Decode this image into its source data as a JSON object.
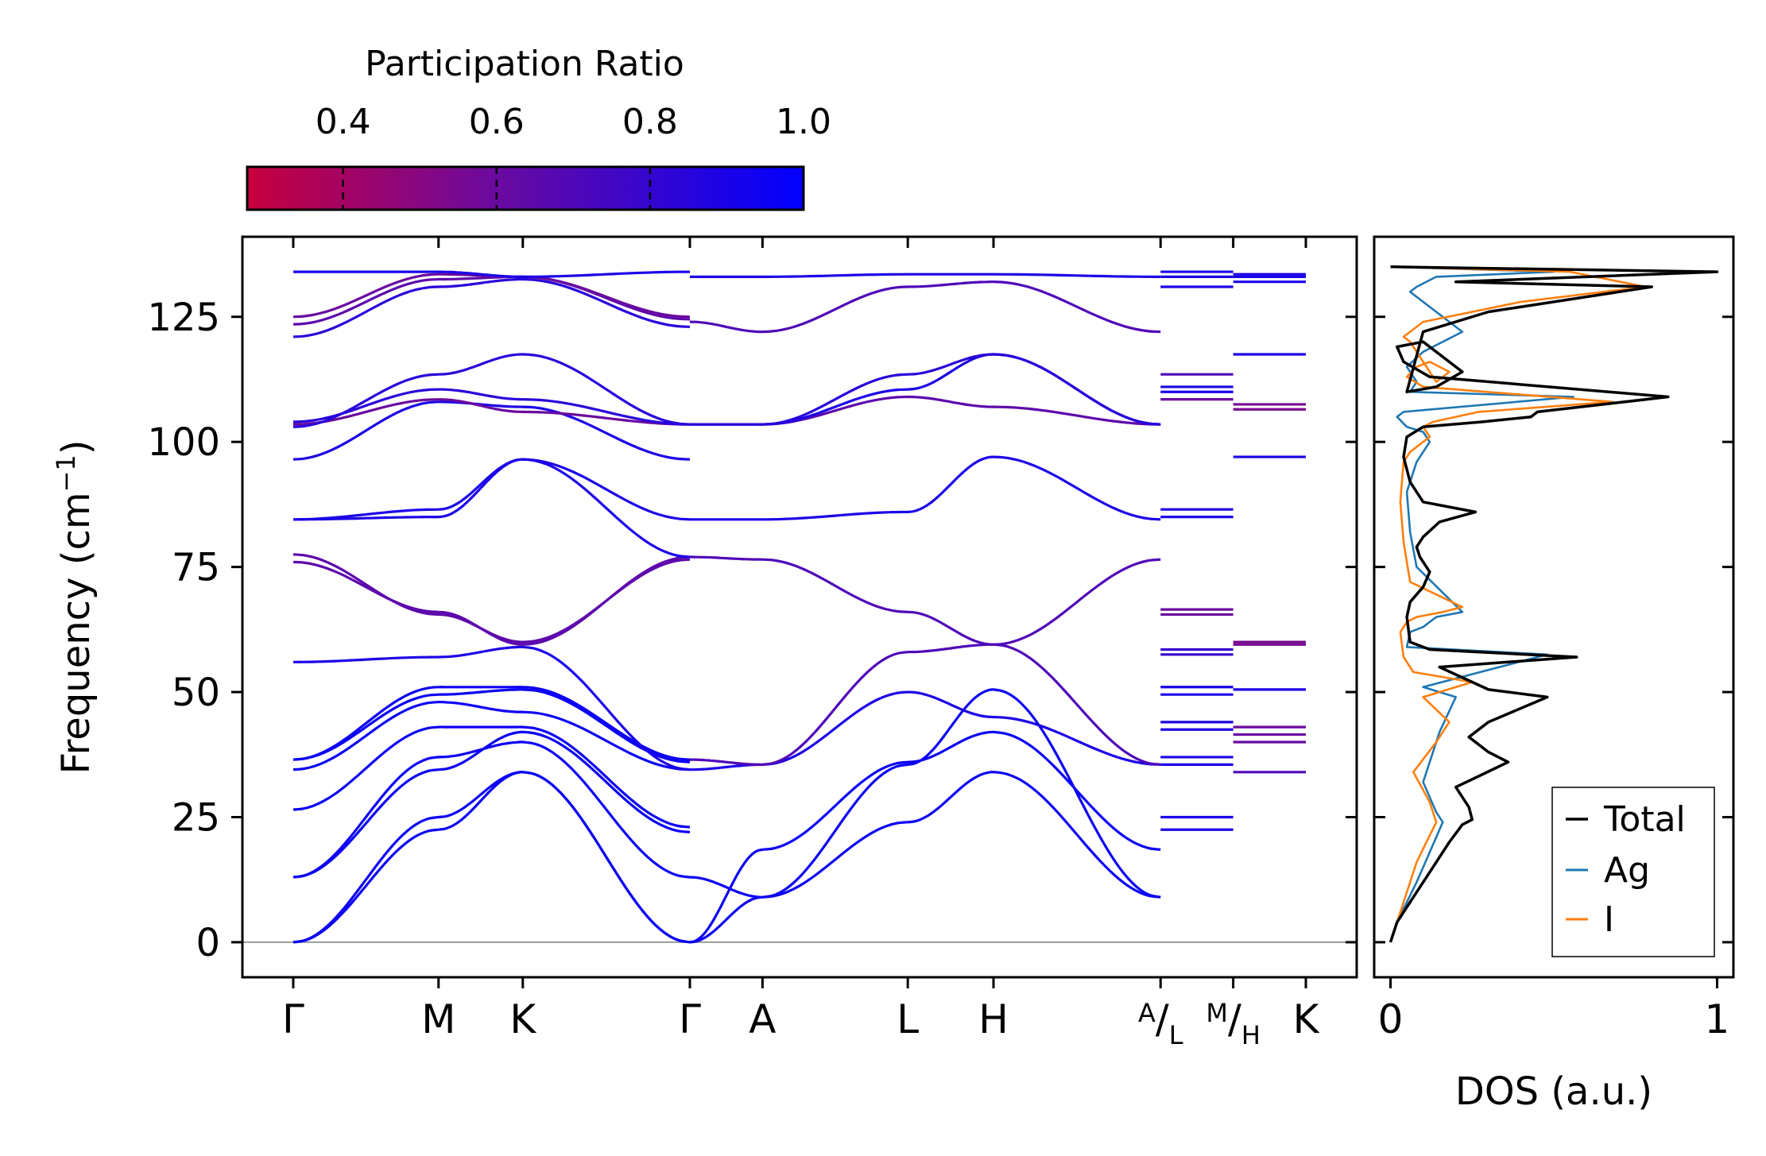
{
  "colors": {
    "cbar_low": "#c8003c",
    "cbar_mid": "#6a0aa0",
    "cbar_high": "#0000ff",
    "band_blue": "#2a10ec",
    "band_purple": "#6a1aa8",
    "total": "#000000",
    "ag": "#1f77b4",
    "i": "#ff7f0e",
    "zero_line": "#999999"
  },
  "chart_data": [
    {
      "type": "line",
      "name": "phonon-dispersion",
      "ylabel": "Frequency (cm",
      "ylabel_sup": "−1",
      "ylabel_close": ")",
      "ylim": [
        -7,
        141
      ],
      "yticks": [
        0,
        25,
        50,
        75,
        100,
        125
      ],
      "ytick_labels": [
        "0",
        "25",
        "50",
        "75",
        "100",
        "125"
      ],
      "path": {
        "segments": [
          {
            "points": [
              "Γ",
              "M",
              "K",
              "Γ",
              "A",
              "L",
              "H",
              "A"
            ],
            "positions": [
              0,
              1.0,
              1.58,
              2.73,
              3.23,
              4.23,
              4.82,
              5.97
            ]
          },
          {
            "points": [
              "L",
              "M"
            ],
            "positions": [
              5.97,
              6.47
            ]
          },
          {
            "points": [
              "H",
              "K"
            ],
            "positions": [
              6.47,
              6.97
            ]
          }
        ],
        "xlim": [
          -0.35,
          7.32
        ]
      },
      "xtick_positions": [
        0,
        1.0,
        1.58,
        2.73,
        3.23,
        4.23,
        4.82,
        5.97,
        6.47,
        6.97
      ],
      "xtick_labels": [
        {
          "main": "Γ"
        },
        {
          "main": "M"
        },
        {
          "main": "K"
        },
        {
          "main": "Γ"
        },
        {
          "main": "A"
        },
        {
          "main": "L"
        },
        {
          "main": "H"
        },
        {
          "sup": "A",
          "sep": "/",
          "sub": "L"
        },
        {
          "sup": "M",
          "sep": "/",
          "sub": "H"
        },
        {
          "main": "K"
        }
      ],
      "colorbar": {
        "title": "Participation Ratio",
        "range": [
          0.275,
          1.0
        ],
        "ticks": [
          0.4,
          0.6,
          0.8,
          1.0
        ],
        "tick_labels": [
          "0.4",
          "0.6",
          "0.8",
          "1.0"
        ]
      },
      "bands_gamma_M_K_gamma": [
        {
          "values": [
            0,
            25,
            34,
            0
          ],
          "pr": 0.95
        },
        {
          "values": [
            0,
            22.5,
            34,
            0
          ],
          "pr": 0.95
        },
        {
          "values": [
            13,
            37,
            40,
            13
          ],
          "pr": 0.95
        },
        {
          "values": [
            13,
            34.5,
            42,
            22
          ],
          "pr": 0.95
        },
        {
          "values": [
            26.5,
            43,
            43,
            23
          ],
          "pr": 0.95
        },
        {
          "values": [
            34.5,
            48,
            46,
            34.5
          ],
          "pr": 0.95
        },
        {
          "values": [
            36.5,
            51,
            51,
            36.5
          ],
          "pr": 0.95
        },
        {
          "values": [
            36.5,
            49.5,
            50.5,
            36
          ],
          "pr": 0.95
        },
        {
          "values": [
            56,
            57,
            59,
            34.5
          ],
          "pr": 0.9
        },
        {
          "values": [
            76,
            66,
            59.5,
            77
          ],
          "pr": 0.65
        },
        {
          "values": [
            77.5,
            65.5,
            60,
            76.5
          ],
          "pr": 0.65
        },
        {
          "values": [
            84.5,
            85,
            96.5,
            77
          ],
          "pr": 0.9
        },
        {
          "values": [
            84.5,
            86.5,
            96.5,
            84.5
          ],
          "pr": 0.9
        },
        {
          "values": [
            96.5,
            108,
            107,
            96.5
          ],
          "pr": 0.9
        },
        {
          "values": [
            103.5,
            108.5,
            106,
            103.5
          ],
          "pr": 0.6
        },
        {
          "values": [
            104,
            110.5,
            108.5,
            103.5
          ],
          "pr": 0.85
        },
        {
          "values": [
            103,
            113.5,
            117.5,
            103.5
          ],
          "pr": 0.85
        },
        {
          "values": [
            121,
            131,
            132.5,
            123
          ],
          "pr": 0.85
        },
        {
          "values": [
            123.5,
            132.5,
            133,
            124.5
          ],
          "pr": 0.65
        },
        {
          "values": [
            125,
            133.5,
            133,
            125
          ],
          "pr": 0.6
        },
        {
          "values": [
            134,
            134,
            133,
            134
          ],
          "pr": 0.9
        }
      ],
      "bands_gamma_A_L_H_A": [
        {
          "values": [
            0,
            9,
            24,
            34,
            9
          ],
          "pr": 0.95
        },
        {
          "values": [
            0,
            18.5,
            36,
            42,
            18.5
          ],
          "pr": 0.95
        },
        {
          "values": [
            13,
            9,
            35.5,
            50.5,
            9
          ],
          "pr": 0.95
        },
        {
          "values": [
            34.5,
            35.5,
            50,
            45,
            35.5
          ],
          "pr": 0.9
        },
        {
          "values": [
            36.5,
            35.5,
            58,
            59.5,
            35.5
          ],
          "pr": 0.7
        },
        {
          "values": [
            77,
            76.5,
            66,
            59.5,
            76.5
          ],
          "pr": 0.7
        },
        {
          "values": [
            84.5,
            84.5,
            86,
            97,
            84.5
          ],
          "pr": 0.9
        },
        {
          "values": [
            103.5,
            103.5,
            109,
            107,
            103.5
          ],
          "pr": 0.65
        },
        {
          "values": [
            103.5,
            103.5,
            110.5,
            117.5,
            103.5
          ],
          "pr": 0.9
        },
        {
          "values": [
            103.5,
            103.5,
            113.5,
            117.5,
            103.5
          ],
          "pr": 0.85
        },
        {
          "values": [
            124,
            122,
            131,
            132,
            122
          ],
          "pr": 0.7
        },
        {
          "values": [
            133,
            133,
            133.5,
            133.5,
            133
          ],
          "pr": 0.9
        }
      ],
      "flat_L_M": [
        {
          "value": 22.5,
          "pr": 0.9
        },
        {
          "value": 25,
          "pr": 0.9
        },
        {
          "value": 35.5,
          "pr": 0.9
        },
        {
          "value": 37,
          "pr": 0.9
        },
        {
          "value": 42.5,
          "pr": 0.9
        },
        {
          "value": 44,
          "pr": 0.9
        },
        {
          "value": 49.5,
          "pr": 0.9
        },
        {
          "value": 51,
          "pr": 0.9
        },
        {
          "value": 57.5,
          "pr": 0.8
        },
        {
          "value": 58.5,
          "pr": 0.8
        },
        {
          "value": 65.5,
          "pr": 0.6
        },
        {
          "value": 66.5,
          "pr": 0.6
        },
        {
          "value": 85,
          "pr": 0.9
        },
        {
          "value": 86.5,
          "pr": 0.9
        },
        {
          "value": 108.5,
          "pr": 0.6
        },
        {
          "value": 110,
          "pr": 0.9
        },
        {
          "value": 111,
          "pr": 0.9
        },
        {
          "value": 113.5,
          "pr": 0.7
        },
        {
          "value": 131,
          "pr": 0.9
        },
        {
          "value": 133,
          "pr": 0.9
        },
        {
          "value": 134,
          "pr": 0.9
        }
      ],
      "flat_H_K": [
        {
          "value": 34,
          "pr": 0.7
        },
        {
          "value": 40,
          "pr": 0.6
        },
        {
          "value": 41.5,
          "pr": 0.6
        },
        {
          "value": 43,
          "pr": 0.6
        },
        {
          "value": 50.5,
          "pr": 0.9
        },
        {
          "value": 59.5,
          "pr": 0.55
        },
        {
          "value": 60,
          "pr": 0.55
        },
        {
          "value": 97,
          "pr": 0.9
        },
        {
          "value": 106.5,
          "pr": 0.55
        },
        {
          "value": 107.5,
          "pr": 0.55
        },
        {
          "value": 117.5,
          "pr": 0.9
        },
        {
          "value": 132,
          "pr": 0.9
        },
        {
          "value": 133,
          "pr": 0.9
        },
        {
          "value": 133.5,
          "pr": 0.9
        }
      ]
    },
    {
      "type": "line",
      "name": "density-of-states",
      "xlabel": "DOS (a.u.)",
      "xlim": [
        -0.05,
        1.05
      ],
      "xticks": [
        0,
        1
      ],
      "xtick_labels": [
        "0",
        "1"
      ],
      "ylim": [
        -7,
        141
      ],
      "legend": {
        "position": "lower-right",
        "entries": [
          "Total",
          "Ag",
          "I"
        ]
      },
      "series": [
        {
          "name": "Total",
          "x": [
            0,
            0.02,
            0.06,
            0.1,
            0.14,
            0.18,
            0.22,
            0.25,
            0.24,
            0.2,
            0.28,
            0.36,
            0.3,
            0.24,
            0.3,
            0.48,
            0.3,
            0.15,
            0.57,
            0.12,
            0.06,
            0.05,
            0.06,
            0.1,
            0.12,
            0.09,
            0.08,
            0.1,
            0.15,
            0.26,
            0.18,
            0.1,
            0.06,
            0.04,
            0.05,
            0.1,
            0.28,
            0.43,
            0.45,
            0.85,
            0.12,
            0.04,
            0.02,
            0.1,
            0.22,
            0.14,
            0.05,
            0.1,
            0.3,
            0.8,
            0.2,
            1.0,
            0
          ],
          "y": [
            0,
            4,
            8,
            12,
            16,
            20,
            23.5,
            24.5,
            27,
            31,
            33.5,
            36,
            38,
            41,
            44,
            49,
            50.5,
            55,
            57,
            58.5,
            60,
            65,
            68,
            71,
            74,
            77,
            79,
            81,
            84,
            86,
            87,
            88,
            92,
            97,
            101,
            103,
            104,
            105,
            106,
            109,
            113,
            116,
            119,
            120,
            114,
            111,
            110,
            122,
            126,
            131,
            132,
            134,
            135
          ]
        },
        {
          "name": "Ag",
          "x": [
            0,
            0.02,
            0.05,
            0.08,
            0.12,
            0.16,
            0.14,
            0.1,
            0.13,
            0.15,
            0.2,
            0.1,
            0.48,
            0.05,
            0.06,
            0.1,
            0.14,
            0.22,
            0.08,
            0.06,
            0.05,
            0.08,
            0.12,
            0.1,
            0.05,
            0.02,
            0.04,
            0.56,
            0.06,
            0.08,
            0.05,
            0.1,
            0.22,
            0.1,
            0.06,
            0.08,
            0.14,
            0.5,
            0
          ],
          "y": [
            0,
            4,
            8,
            12,
            18,
            24,
            26,
            32,
            38,
            42,
            49,
            51,
            57.5,
            59,
            62,
            63,
            65,
            66,
            75,
            82,
            90,
            96,
            100,
            102,
            103,
            105,
            106,
            109,
            110,
            112,
            115,
            118,
            122,
            128,
            130,
            131,
            133,
            134,
            135
          ]
        },
        {
          "name": "I",
          "x": [
            0,
            0.02,
            0.04,
            0.06,
            0.08,
            0.14,
            0.12,
            0.07,
            0.14,
            0.18,
            0.1,
            0.25,
            0.07,
            0.04,
            0.03,
            0.05,
            0.08,
            0.16,
            0.22,
            0.06,
            0.04,
            0.03,
            0.04,
            0.06,
            0.12,
            0.1,
            0.13,
            0.27,
            0.68,
            0.1,
            0.05,
            0.08,
            0.12,
            0.18,
            0.14,
            0.06,
            0.04,
            0.1,
            0.4,
            0.78,
            0.55,
            0
          ],
          "y": [
            0,
            4,
            8,
            12,
            16,
            24,
            28,
            34,
            40,
            44,
            49,
            52,
            54,
            57,
            62,
            64,
            65,
            66,
            67,
            72,
            80,
            88,
            96,
            98,
            101,
            103,
            104,
            106,
            108,
            111,
            113,
            115,
            116,
            114,
            112,
            120,
            121,
            124,
            128,
            131,
            134,
            135
          ]
        }
      ]
    }
  ]
}
